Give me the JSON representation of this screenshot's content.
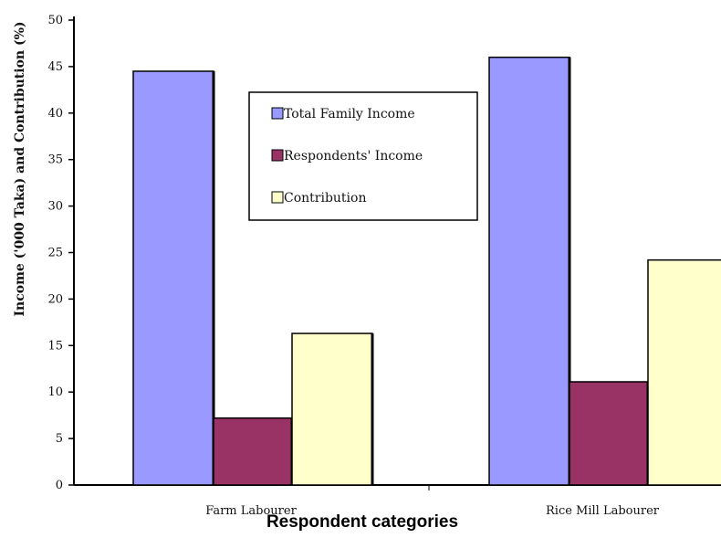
{
  "chart_data": {
    "type": "bar",
    "categories": [
      "Farm Labourer",
      "Rice Mill Labourer"
    ],
    "series": [
      {
        "name": "Total Family Income",
        "values": [
          44.5,
          46.0
        ],
        "color": "#9999ff"
      },
      {
        "name": "Respondents' Income",
        "values": [
          7.2,
          11.1
        ],
        "color": "#993366"
      },
      {
        "name": "Contribution",
        "values": [
          16.3,
          24.2
        ],
        "color": "#ffffcc"
      }
    ],
    "xlabel": "Respondent categories",
    "ylabel": "Income ('000 Taka) and Contribution (%)",
    "ylim": [
      0,
      50
    ],
    "yticks": [
      0,
      5,
      10,
      15,
      20,
      25,
      30,
      35,
      40,
      45,
      50
    ],
    "grid": false,
    "legend_position": "top-center"
  }
}
